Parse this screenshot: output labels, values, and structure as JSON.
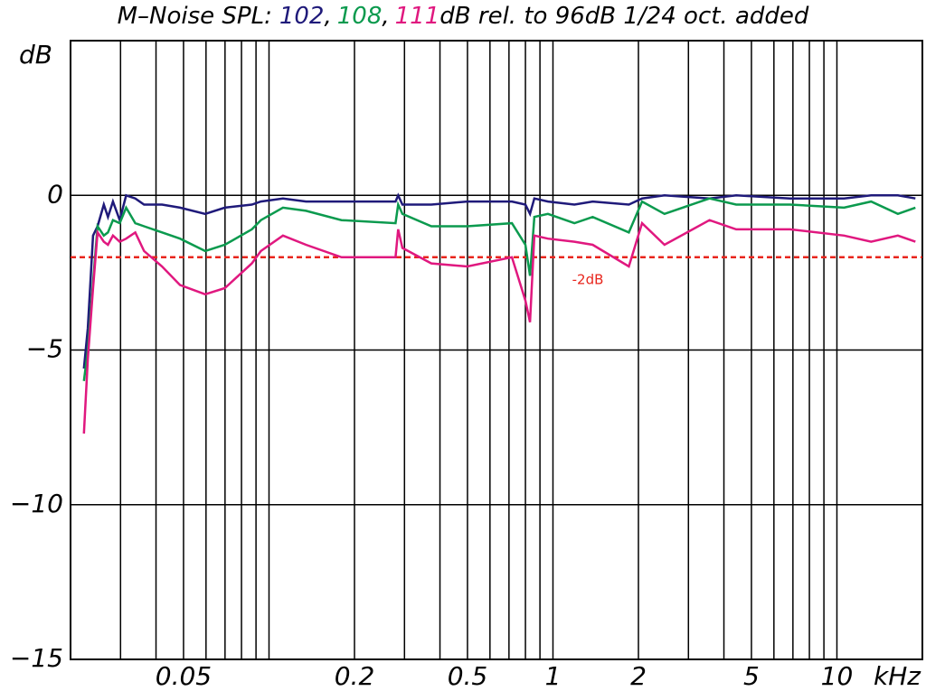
{
  "chart_data": {
    "type": "line",
    "title_prefix": "M–Noise SPL:",
    "title_separator": ",",
    "title_suffix": "dB rel. to 96dB 1/24 oct. added",
    "y_label": "dB",
    "x_unit": "kHz",
    "log_x": true,
    "grid": true,
    "xlim": [
      0.02,
      20
    ],
    "ylim": [
      -15,
      5
    ],
    "xticks": [
      0.05,
      0.2,
      0.5,
      1,
      2,
      5,
      10
    ],
    "xgrid": [
      0.03,
      0.04,
      0.06,
      0.07,
      0.08,
      0.09,
      0.1,
      0.3,
      0.4,
      0.6,
      0.7,
      0.8,
      0.9,
      3,
      4,
      6,
      7,
      8,
      9
    ],
    "yticks": [
      {
        "value": 0,
        "label": "0"
      },
      {
        "value": -5,
        "label": "−5"
      },
      {
        "value": -10,
        "label": "−10"
      },
      {
        "value": -15,
        "label": "−15"
      }
    ],
    "reference": {
      "value": -2,
      "label": "-2dB",
      "color": "#e8251c"
    },
    "x": [
      0.0223,
      0.023,
      0.024,
      0.0249,
      0.0262,
      0.0271,
      0.0282,
      0.0298,
      0.0314,
      0.0338,
      0.0363,
      0.042,
      0.0486,
      0.0596,
      0.0699,
      0.087,
      0.0936,
      0.112,
      0.135,
      0.18,
      0.279,
      0.285,
      0.295,
      0.373,
      0.499,
      0.717,
      0.8,
      0.83,
      0.86,
      0.96,
      1.19,
      1.38,
      1.85,
      2.06,
      2.47,
      3.56,
      4.42,
      6.84,
      10.6,
      13.2,
      16.4,
      18.9
    ],
    "series": [
      {
        "name": "102",
        "color": "#1f1a7a",
        "values": [
          -5.6,
          -4.3,
          -1.3,
          -1.0,
          -0.3,
          -0.7,
          -0.2,
          -0.8,
          0,
          -0.1,
          -0.3,
          -0.3,
          -0.4,
          -0.6,
          -0.4,
          -0.3,
          -0.2,
          -0.1,
          -0.2,
          -0.2,
          -0.2,
          0,
          -0.3,
          -0.3,
          -0.2,
          -0.2,
          -0.3,
          -0.6,
          -0.1,
          -0.2,
          -0.3,
          -0.2,
          -0.3,
          -0.1,
          0,
          -0.1,
          0,
          -0.1,
          -0.1,
          0,
          0,
          -0.1
        ]
      },
      {
        "name": "108",
        "color": "#0b9a4e",
        "values": [
          -6.0,
          -5.0,
          -2.8,
          -1.0,
          -1.3,
          -1.2,
          -0.8,
          -0.9,
          -0.4,
          -0.9,
          -1.0,
          -1.2,
          -1.4,
          -1.8,
          -1.6,
          -1.1,
          -0.8,
          -0.4,
          -0.5,
          -0.8,
          -0.9,
          -0.3,
          -0.6,
          -1.0,
          -1.0,
          -0.9,
          -1.6,
          -2.6,
          -0.7,
          -0.6,
          -0.9,
          -0.7,
          -1.2,
          -0.2,
          -0.6,
          -0.1,
          -0.3,
          -0.3,
          -0.4,
          -0.2,
          -0.6,
          -0.4
        ]
      },
      {
        "name": "111",
        "color": "#e0187f",
        "values": [
          -7.7,
          -5.3,
          -3.0,
          -1.2,
          -1.5,
          -1.6,
          -1.3,
          -1.5,
          -1.4,
          -1.2,
          -1.8,
          -2.3,
          -2.9,
          -3.2,
          -3.0,
          -2.2,
          -1.8,
          -1.3,
          -1.6,
          -2.0,
          -2.0,
          -1.1,
          -1.7,
          -2.2,
          -2.3,
          -2.0,
          -3.4,
          -4.1,
          -1.3,
          -1.4,
          -1.5,
          -1.6,
          -2.3,
          -0.9,
          -1.6,
          -0.8,
          -1.1,
          -1.1,
          -1.3,
          -1.5,
          -1.3,
          -1.5
        ]
      }
    ]
  }
}
